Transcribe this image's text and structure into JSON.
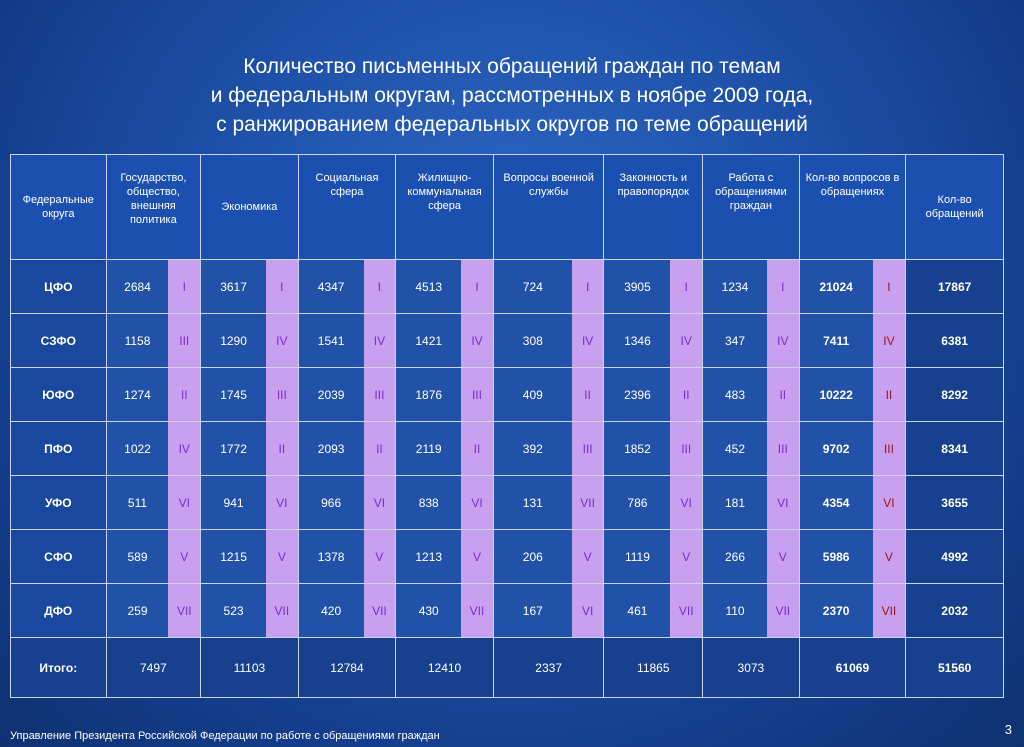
{
  "title": {
    "line1": "Количество письменных обращений граждан по темам",
    "line2": "и федеральным округам, рассмотренных в ноябре 2009 года,",
    "line3": "с ранжированием федеральных округов по теме обращений"
  },
  "headers": [
    "Федеральные округа",
    "Государство, общество, внешняя политика",
    "Экономика",
    "Социальная сфера",
    "Жилищно-коммунальная сфера",
    "Вопросы военной службы",
    "Законность и правопорядок",
    "Работа с обращениями граждан",
    "Кол-во вопросов в обращениях",
    "Кол-во обращений"
  ],
  "rows": [
    {
      "district": "ЦФО",
      "cells": [
        [
          "2684",
          "I"
        ],
        [
          "3617",
          "I"
        ],
        [
          "4347",
          "I"
        ],
        [
          "4513",
          "I"
        ],
        [
          "724",
          "I"
        ],
        [
          "3905",
          "I"
        ],
        [
          "1234",
          "I"
        ],
        [
          "21024",
          "I"
        ]
      ],
      "total": "17867"
    },
    {
      "district": "СЗФО",
      "cells": [
        [
          "1158",
          "III"
        ],
        [
          "1290",
          "IV"
        ],
        [
          "1541",
          "IV"
        ],
        [
          "1421",
          "IV"
        ],
        [
          "308",
          "IV"
        ],
        [
          "1346",
          "IV"
        ],
        [
          "347",
          "IV"
        ],
        [
          "7411",
          "IV"
        ]
      ],
      "total": "6381"
    },
    {
      "district": "ЮФО",
      "cells": [
        [
          "1274",
          "II"
        ],
        [
          "1745",
          "III"
        ],
        [
          "2039",
          "III"
        ],
        [
          "1876",
          "III"
        ],
        [
          "409",
          "II"
        ],
        [
          "2396",
          "II"
        ],
        [
          "483",
          "II"
        ],
        [
          "10222",
          "II"
        ]
      ],
      "total": "8292"
    },
    {
      "district": "ПФО",
      "cells": [
        [
          "1022",
          "IV"
        ],
        [
          "1772",
          "II"
        ],
        [
          "2093",
          "II"
        ],
        [
          "2119",
          "II"
        ],
        [
          "392",
          "III"
        ],
        [
          "1852",
          "III"
        ],
        [
          "452",
          "III"
        ],
        [
          "9702",
          "III"
        ]
      ],
      "total": "8341"
    },
    {
      "district": "УФО",
      "cells": [
        [
          "511",
          "VI"
        ],
        [
          "941",
          "VI"
        ],
        [
          "966",
          "VI"
        ],
        [
          "838",
          "VI"
        ],
        [
          "131",
          "VII"
        ],
        [
          "786",
          "VI"
        ],
        [
          "181",
          "VI"
        ],
        [
          "4354",
          "VI"
        ]
      ],
      "total": "3655"
    },
    {
      "district": "СФО",
      "cells": [
        [
          "589",
          "V"
        ],
        [
          "1215",
          "V"
        ],
        [
          "1378",
          "V"
        ],
        [
          "1213",
          "V"
        ],
        [
          "206",
          "V"
        ],
        [
          "1119",
          "V"
        ],
        [
          "266",
          "V"
        ],
        [
          "5986",
          "V"
        ]
      ],
      "total": "4992"
    },
    {
      "district": "ДФО",
      "cells": [
        [
          "259",
          "VII"
        ],
        [
          "523",
          "VII"
        ],
        [
          "420",
          "VII"
        ],
        [
          "430",
          "VII"
        ],
        [
          "167",
          "VI"
        ],
        [
          "461",
          "VII"
        ],
        [
          "110",
          "VII"
        ],
        [
          "2370",
          "VII"
        ]
      ],
      "total": "2032"
    }
  ],
  "totals": {
    "label": "Итого:",
    "values": [
      "7497",
      "11103",
      "12784",
      "12410",
      "2337",
      "11865",
      "3073",
      "61069"
    ],
    "count": "51560"
  },
  "footer": "Управление Президента Российской Федерации по работе с обращениями граждан",
  "page_number": "3",
  "colors": {
    "background": "#1d4fa6",
    "rank_cell": "#c9a0f0",
    "rank_text": "#7a2bd4",
    "rank_text_totals": "#9a1414"
  }
}
